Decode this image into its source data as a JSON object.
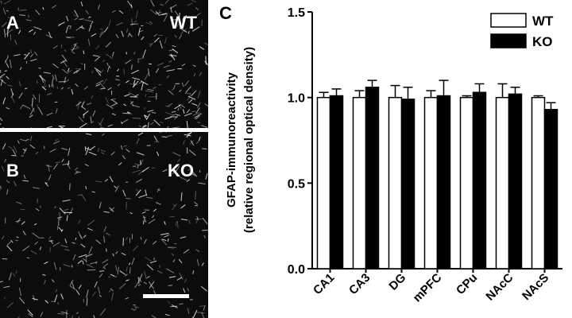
{
  "panels": [
    {
      "label": "A",
      "genotype": "WT"
    },
    {
      "label": "B",
      "genotype": "KO"
    }
  ],
  "chart_data": {
    "type": "bar",
    "label": "C",
    "ylabel": [
      "GFAP-immunoreactivity",
      "(relative regional optical density)"
    ],
    "categories": [
      "CA1",
      "CA3",
      "DG",
      "mPFC",
      "CPu",
      "NAcC",
      "NAcS"
    ],
    "series": [
      {
        "name": "WT",
        "color": "#ffffff",
        "values": [
          1.0,
          1.0,
          1.0,
          1.0,
          1.0,
          1.0,
          1.0
        ],
        "errors": [
          0.03,
          0.04,
          0.07,
          0.04,
          0.01,
          0.08,
          0.01
        ]
      },
      {
        "name": "KO",
        "color": "#000000",
        "values": [
          1.01,
          1.06,
          0.99,
          1.01,
          1.03,
          1.02,
          0.93
        ],
        "errors": [
          0.04,
          0.04,
          0.07,
          0.09,
          0.05,
          0.04,
          0.04
        ]
      }
    ],
    "ylim": [
      0,
      1.5
    ],
    "yticks": [
      {
        "value": 0,
        "label": "0.0"
      },
      {
        "value": 0.5,
        "label": "0.5"
      },
      {
        "value": 1,
        "label": "1.0"
      },
      {
        "value": 1.5,
        "label": "1.5"
      }
    ],
    "grid": false,
    "legend": "top-right"
  }
}
